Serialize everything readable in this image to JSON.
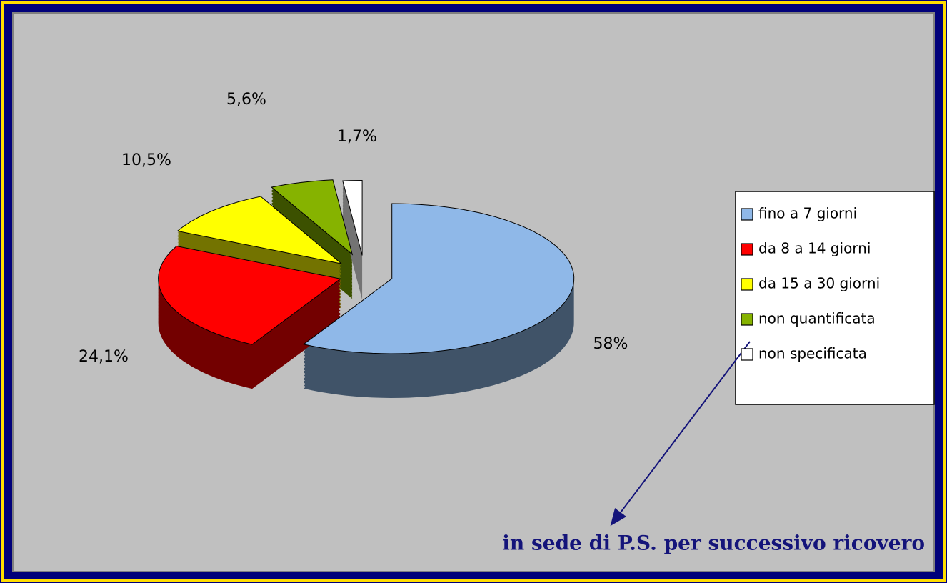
{
  "chart_data": {
    "type": "pie",
    "categories": [
      "fino a 7 giorni",
      "da 8 a 14 giorni",
      "da 15 a 30 giorni",
      "non quantificata",
      "non specificata"
    ],
    "values": [
      58,
      24.1,
      10.5,
      5.6,
      1.7
    ],
    "value_labels": [
      "58%",
      "24,1%",
      "10,5%",
      "5,6%",
      "1,7%"
    ],
    "colors": [
      "#8fb8e8",
      "#ff0000",
      "#ffff00",
      "#86b300",
      "#ffffff"
    ],
    "legend": "right",
    "annotation": "in sede di P.S. per successivo ricovero"
  }
}
